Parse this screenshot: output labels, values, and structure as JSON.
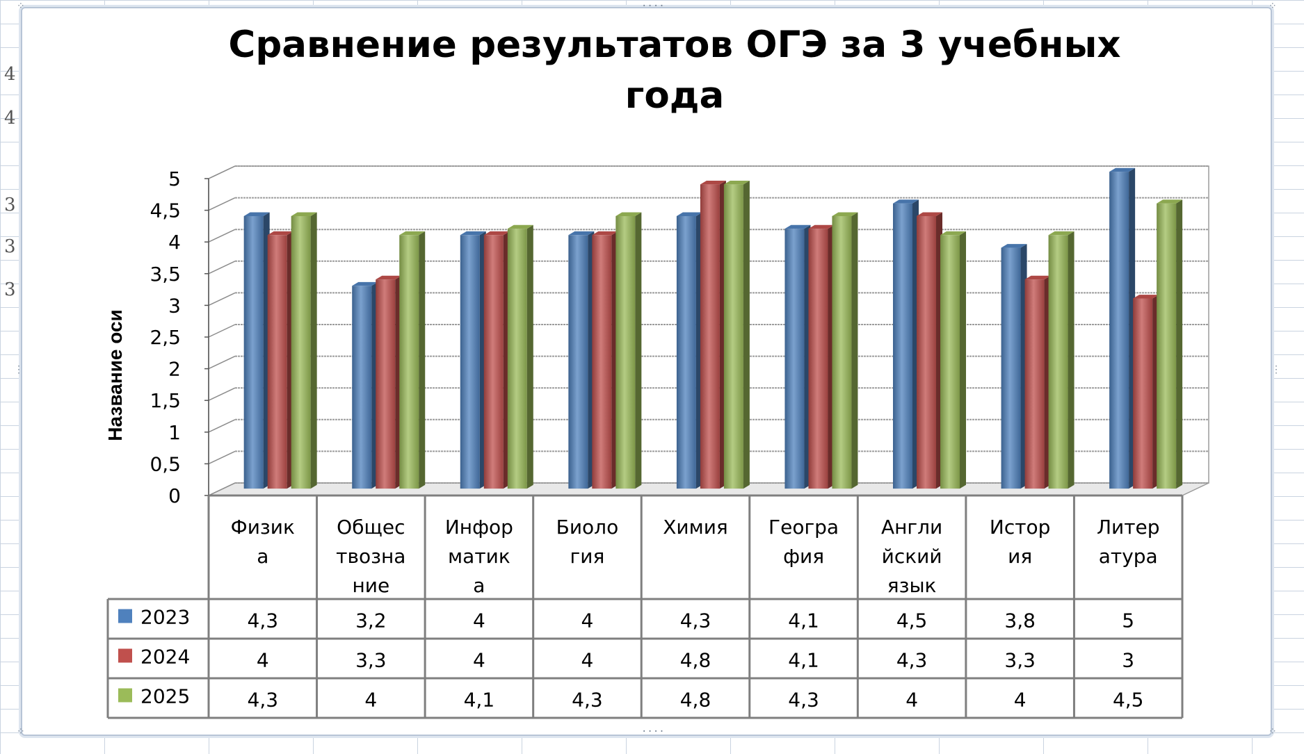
{
  "sheet": {
    "left_margin_digits": [
      "4",
      "4",
      "3",
      "3",
      "3"
    ]
  },
  "axis": {
    "title": "Название оси"
  },
  "chart_data": {
    "type": "bar",
    "title": "Сравнение результатов ОГЭ за 3 учебных года",
    "xlabel": "",
    "ylabel": "Название оси",
    "ylim": [
      0,
      5
    ],
    "yticks": [
      "0",
      "0,5",
      "1",
      "1,5",
      "2",
      "2,5",
      "3",
      "3,5",
      "4",
      "4,5",
      "5"
    ],
    "grid": true,
    "legend": "data-table",
    "categories": [
      "Физика",
      "Обществознание",
      "Информатика",
      "Биология",
      "Химия",
      "География",
      "Английский язык",
      "История",
      "Литература"
    ],
    "category_label_lines": [
      [
        "Физик",
        "а"
      ],
      [
        "Общес",
        "твозна",
        "ние"
      ],
      [
        "Инфор",
        "матик",
        "а"
      ],
      [
        "Биоло",
        "гия"
      ],
      [
        "Химия"
      ],
      [
        "Геогра",
        "фия"
      ],
      [
        "Англи",
        "йский",
        "язык"
      ],
      [
        "Истор",
        "ия"
      ],
      [
        "Литер",
        "атура"
      ]
    ],
    "series": [
      {
        "name": "2023",
        "color": "#4f81bd",
        "values": [
          4.3,
          3.2,
          4,
          4,
          4.3,
          4.1,
          4.5,
          3.8,
          5
        ],
        "labels": [
          "4,3",
          "3,2",
          "4",
          "4",
          "4,3",
          "4,1",
          "4,5",
          "3,8",
          "5"
        ]
      },
      {
        "name": "2024",
        "color": "#c0504d",
        "values": [
          4,
          3.3,
          4,
          4,
          4.8,
          4.1,
          4.3,
          3.3,
          3
        ],
        "labels": [
          "4",
          "3,3",
          "4",
          "4",
          "4,8",
          "4,1",
          "4,3",
          "3,3",
          "3"
        ]
      },
      {
        "name": "2025",
        "color": "#9bbb59",
        "values": [
          4.3,
          4,
          4.1,
          4.3,
          4.8,
          4.3,
          4,
          4,
          4.5
        ],
        "labels": [
          "4,3",
          "4",
          "4,1",
          "4,3",
          "4,8",
          "4,3",
          "4",
          "4",
          "4,5"
        ]
      }
    ]
  }
}
